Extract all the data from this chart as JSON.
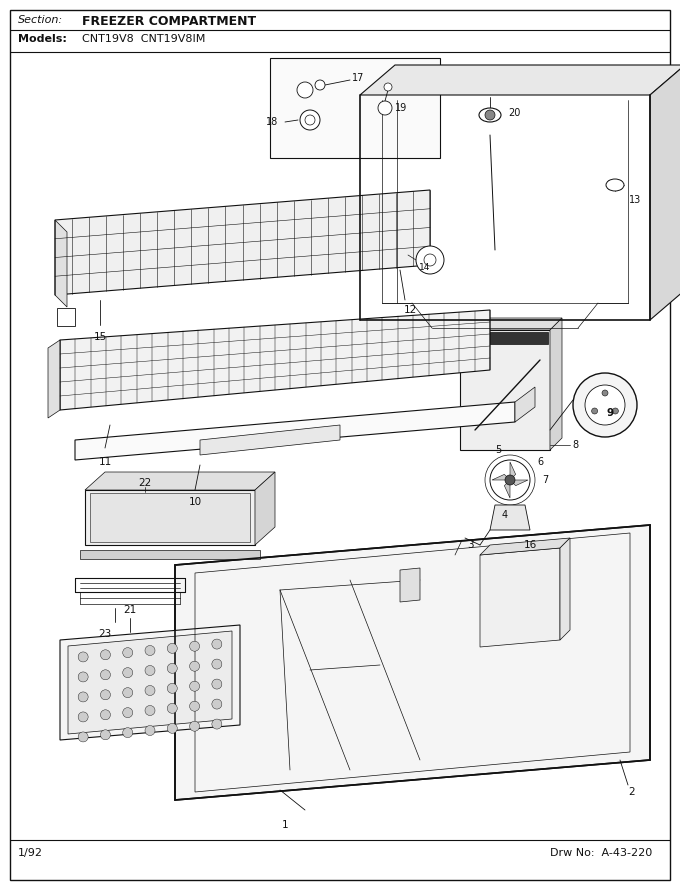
{
  "section_label": "Section:",
  "section_title": "FREEZER COMPARTMENT",
  "models_label": "Models:",
  "models_text": "CNT19V8  CNT19V8IM",
  "footer_left": "1/92",
  "footer_right": "Drw No:  A-43-220",
  "bg_color": "#ffffff",
  "border_color": "#000000",
  "fig_width": 6.8,
  "fig_height": 8.9,
  "dpi": 100
}
